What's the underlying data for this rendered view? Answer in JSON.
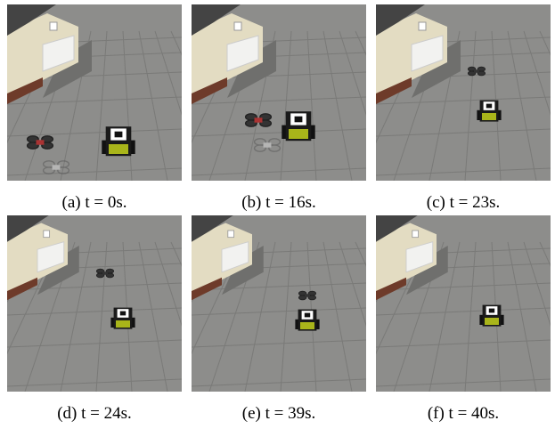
{
  "panels": [
    {
      "caption": "(a) t = 0s."
    },
    {
      "caption": "(b) t = 16s."
    },
    {
      "caption": "(c) t = 23s."
    },
    {
      "caption": "(d) t = 24s."
    },
    {
      "caption": "(e) t = 39s."
    },
    {
      "caption": "(f) t = 40s."
    }
  ]
}
